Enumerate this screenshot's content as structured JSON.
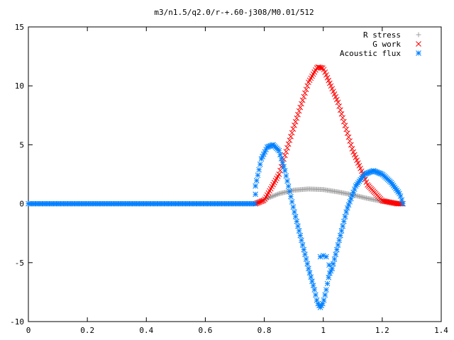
{
  "chart_data": {
    "type": "scatter",
    "title": "m3/n1.5/q2.0/r-+.60-j308/M0.01/512",
    "xlabel": "",
    "ylabel": "",
    "xlim": [
      0,
      1.4
    ],
    "ylim": [
      -10,
      15
    ],
    "x_ticks": [
      "0",
      "0.2",
      "0.4",
      "0.6",
      "0.8",
      "1",
      "1.2",
      "1.4"
    ],
    "y_ticks": [
      "-10",
      "-5",
      "0",
      "5",
      "10",
      "15"
    ],
    "grid": false,
    "legend": "top-right",
    "series": [
      {
        "name": "R stress",
        "marker": "plus",
        "color": "#a0a0a0",
        "x": [
          0.77,
          0.8,
          0.85,
          0.9,
          0.95,
          1.0,
          1.05,
          1.1,
          1.15,
          1.2,
          1.25,
          1.27
        ],
        "y": [
          0.0,
          0.35,
          0.85,
          1.15,
          1.25,
          1.2,
          1.0,
          0.75,
          0.45,
          0.2,
          0.05,
          0.0
        ],
        "zero_from": 0.0,
        "zero_to": 0.77
      },
      {
        "name": "G work",
        "marker": "cross",
        "color": "#ff0000",
        "x": [
          0.77,
          0.8,
          0.85,
          0.9,
          0.95,
          0.98,
          1.0,
          1.05,
          1.1,
          1.15,
          1.2,
          1.25,
          1.27
        ],
        "y": [
          0.0,
          0.3,
          2.5,
          6.5,
          10.3,
          11.6,
          11.5,
          8.6,
          4.5,
          1.6,
          0.25,
          0.0,
          0.0
        ]
      },
      {
        "name": "Acoustic flux",
        "marker": "star",
        "color": "#0080ff",
        "x": [
          0.77,
          0.79,
          0.81,
          0.83,
          0.85,
          0.87,
          0.9,
          0.93,
          0.95,
          0.97,
          0.98,
          0.99,
          1.0,
          1.01,
          1.02,
          1.03,
          1.05,
          1.08,
          1.11,
          1.14,
          1.17,
          1.2,
          1.23,
          1.26,
          1.27
        ],
        "y": [
          1.5,
          3.8,
          4.8,
          5.0,
          4.5,
          2.8,
          -0.5,
          -3.5,
          -5.5,
          -7.3,
          -8.4,
          -8.8,
          -8.4,
          -7.3,
          -6.0,
          -5.5,
          -3.5,
          -0.5,
          1.5,
          2.5,
          2.8,
          2.5,
          1.8,
          0.8,
          0.0
        ],
        "zero_from": 0.0,
        "zero_to": 0.77,
        "outliers": {
          "x": [
            0.77,
            0.99,
            1.0,
            1.01,
            1.02
          ],
          "y": [
            0.8,
            -4.5,
            -4.4,
            -4.5,
            -5.2
          ]
        }
      }
    ]
  }
}
